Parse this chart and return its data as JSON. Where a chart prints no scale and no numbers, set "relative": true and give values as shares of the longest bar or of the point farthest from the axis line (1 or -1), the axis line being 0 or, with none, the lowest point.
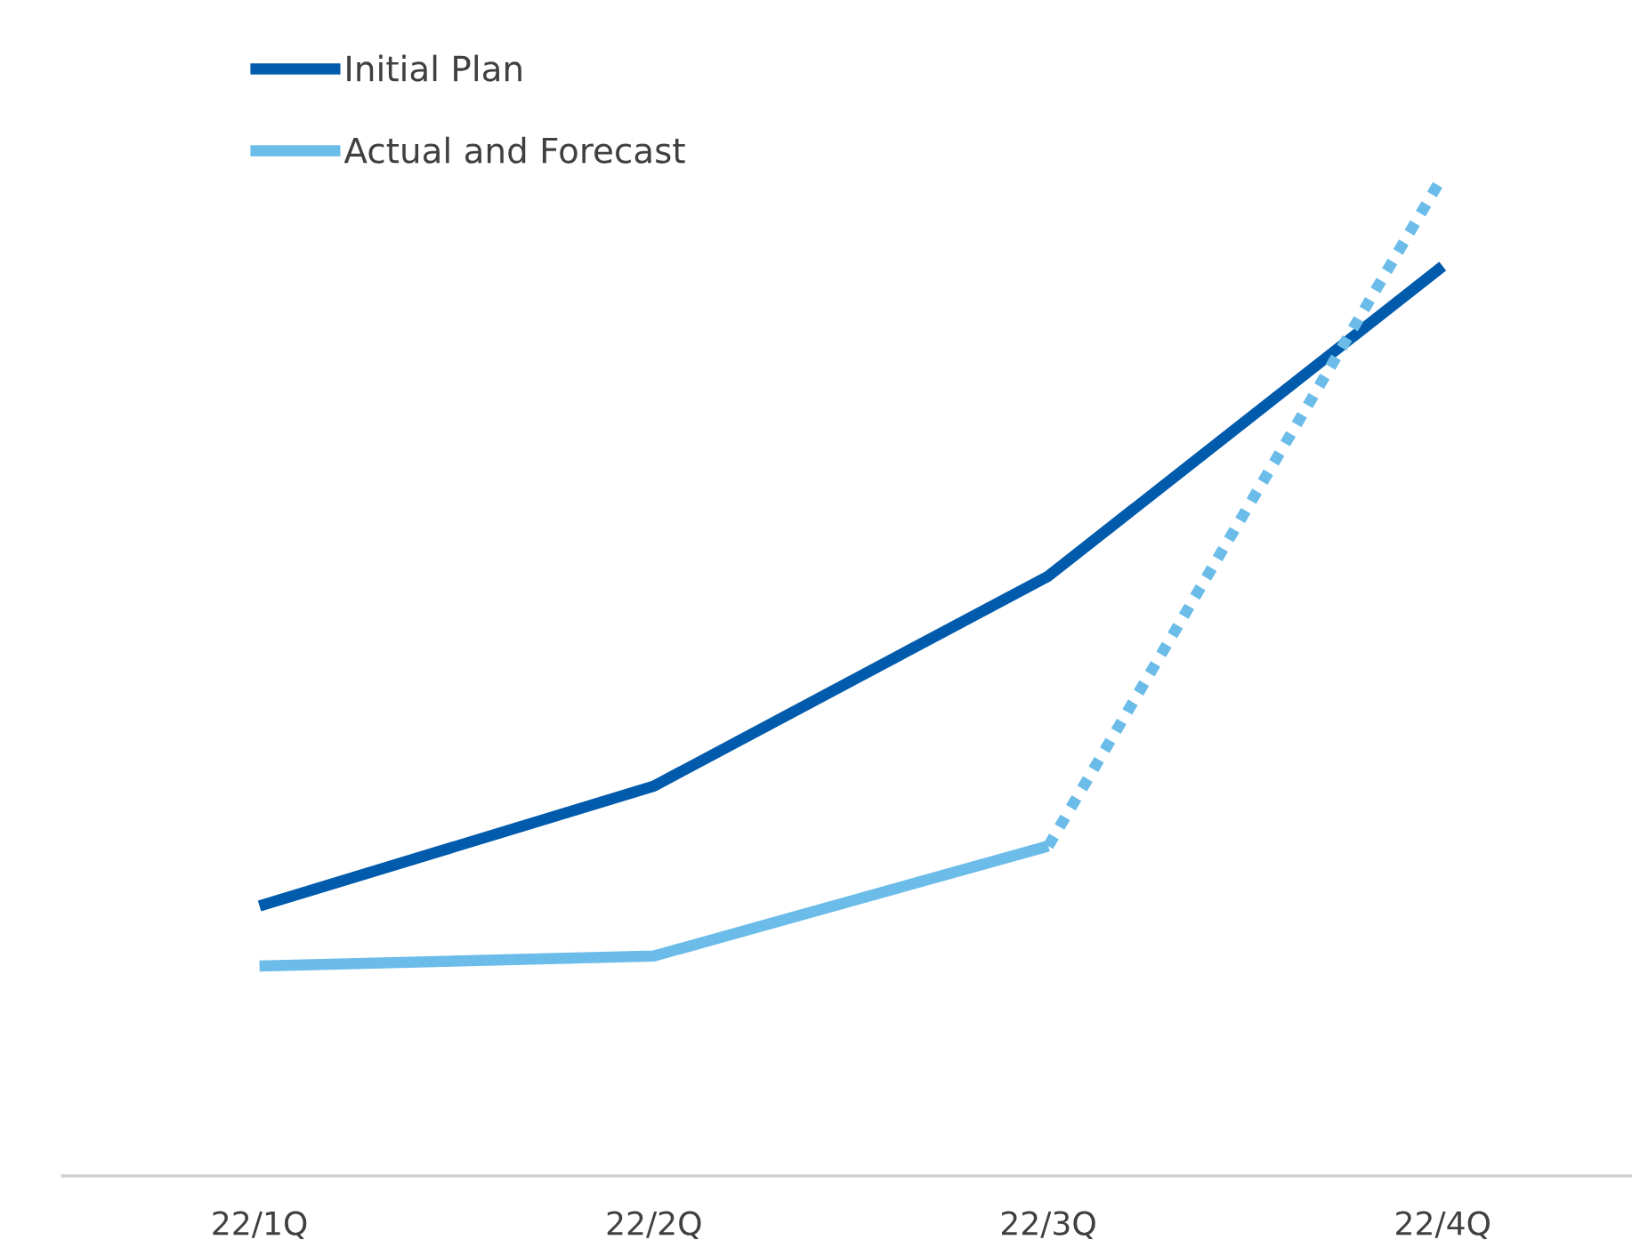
{
  "chart_data": {
    "type": "line",
    "relative": true,
    "categories": [
      "22/1Q",
      "22/2Q",
      "22/3Q",
      "22/4Q"
    ],
    "series": [
      {
        "name": "Initial Plan",
        "color": "#005bac",
        "values": [
          0.27,
          0.39,
          0.6,
          0.91
        ],
        "line_style": "solid"
      },
      {
        "name": "Actual and Forecast",
        "color": "#6bbce9",
        "values": [
          0.21,
          0.22,
          0.33,
          null
        ],
        "line_style": "solid"
      },
      {
        "color": "#6bbce9",
        "values": [
          null,
          null,
          0.33,
          1.0
        ],
        "line_style": "dotted"
      }
    ],
    "legend": "top left",
    "grid": false,
    "marker": "none"
  }
}
